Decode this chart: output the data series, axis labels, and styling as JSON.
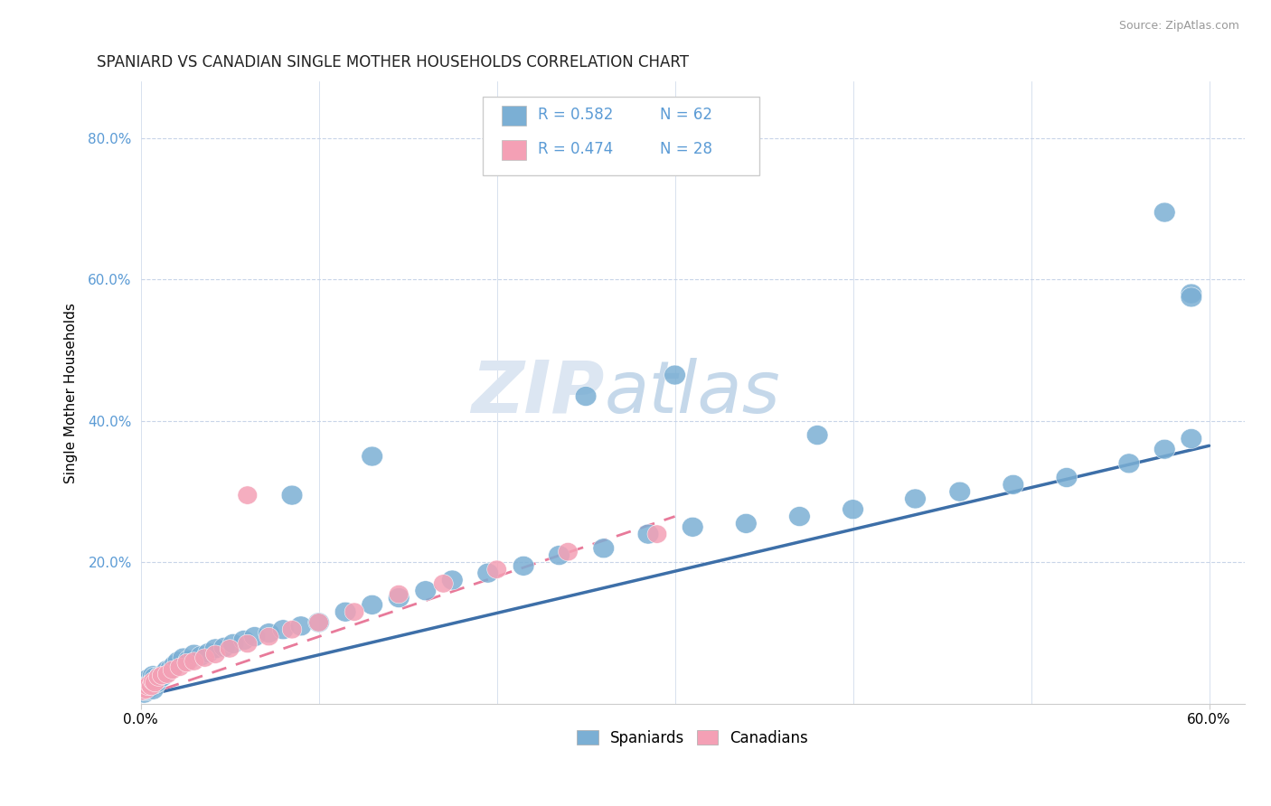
{
  "title": "SPANIARD VS CANADIAN SINGLE MOTHER HOUSEHOLDS CORRELATION CHART",
  "source": "Source: ZipAtlas.com",
  "ylabel": "Single Mother Households",
  "xlim": [
    0.0,
    0.62
  ],
  "ylim": [
    0.0,
    0.88
  ],
  "spaniard_color": "#7bafd4",
  "canadian_color": "#f4a0b5",
  "spaniard_line_color": "#3d6fa8",
  "canadian_line_color": "#e87a9a",
  "spaniard_R": 0.582,
  "spaniard_N": 62,
  "canadian_R": 0.474,
  "canadian_N": 28,
  "legend_label_1": "Spaniards",
  "legend_label_2": "Canadians",
  "background_color": "#ffffff",
  "grid_color": "#c8d4e8",
  "axis_tick_color": "#5b9bd5",
  "title_color": "#222222",
  "source_color": "#999999",
  "spaniards_x": [
    0.001,
    0.002,
    0.002,
    0.003,
    0.003,
    0.004,
    0.004,
    0.005,
    0.005,
    0.006,
    0.006,
    0.007,
    0.007,
    0.008,
    0.008,
    0.009,
    0.01,
    0.011,
    0.012,
    0.013,
    0.014,
    0.015,
    0.017,
    0.019,
    0.021,
    0.024,
    0.027,
    0.03,
    0.034,
    0.038,
    0.042,
    0.047,
    0.052,
    0.058,
    0.064,
    0.072,
    0.08,
    0.09,
    0.1,
    0.115,
    0.13,
    0.145,
    0.16,
    0.175,
    0.195,
    0.215,
    0.235,
    0.26,
    0.285,
    0.31,
    0.34,
    0.37,
    0.4,
    0.435,
    0.46,
    0.49,
    0.52,
    0.555,
    0.575,
    0.59,
    0.3,
    0.59
  ],
  "spaniards_y": [
    0.02,
    0.015,
    0.025,
    0.018,
    0.03,
    0.02,
    0.035,
    0.022,
    0.028,
    0.025,
    0.032,
    0.02,
    0.04,
    0.028,
    0.038,
    0.03,
    0.035,
    0.04,
    0.038,
    0.042,
    0.045,
    0.048,
    0.05,
    0.055,
    0.06,
    0.065,
    0.062,
    0.07,
    0.068,
    0.072,
    0.078,
    0.08,
    0.085,
    0.09,
    0.095,
    0.1,
    0.105,
    0.11,
    0.115,
    0.13,
    0.14,
    0.15,
    0.16,
    0.175,
    0.185,
    0.195,
    0.21,
    0.22,
    0.24,
    0.25,
    0.255,
    0.265,
    0.275,
    0.29,
    0.3,
    0.31,
    0.32,
    0.34,
    0.36,
    0.375,
    0.465,
    0.58
  ],
  "canadians_x": [
    0.001,
    0.002,
    0.003,
    0.004,
    0.005,
    0.006,
    0.007,
    0.008,
    0.01,
    0.012,
    0.015,
    0.018,
    0.022,
    0.026,
    0.03,
    0.036,
    0.042,
    0.05,
    0.06,
    0.072,
    0.085,
    0.1,
    0.12,
    0.145,
    0.17,
    0.2,
    0.24,
    0.29
  ],
  "canadians_y": [
    0.018,
    0.022,
    0.02,
    0.025,
    0.028,
    0.025,
    0.032,
    0.03,
    0.038,
    0.04,
    0.042,
    0.048,
    0.052,
    0.058,
    0.06,
    0.065,
    0.07,
    0.078,
    0.085,
    0.095,
    0.105,
    0.115,
    0.13,
    0.155,
    0.17,
    0.19,
    0.215,
    0.24
  ],
  "spaniard_outliers_x": [
    0.085,
    0.13,
    0.25,
    0.38,
    0.575,
    0.59
  ],
  "spaniard_outliers_y": [
    0.295,
    0.35,
    0.435,
    0.38,
    0.695,
    0.575
  ],
  "canadian_outlier_x": [
    0.06
  ],
  "canadian_outlier_y": [
    0.295
  ],
  "line_s_x0": 0.0,
  "line_s_y0": 0.01,
  "line_s_x1": 0.6,
  "line_s_y1": 0.365,
  "line_c_x0": 0.0,
  "line_c_y0": 0.01,
  "line_c_x1": 0.3,
  "line_c_y1": 0.265
}
